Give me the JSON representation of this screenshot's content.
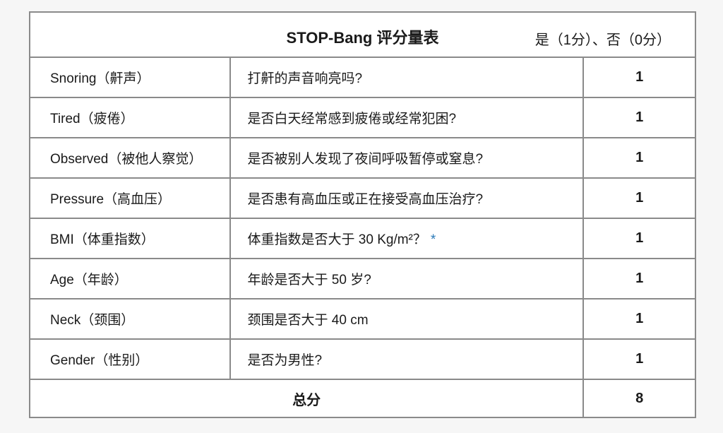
{
  "table": {
    "title": "STOP-Bang 评分量表",
    "scoring_legend": "是（1分）、否（0分）",
    "rows": [
      {
        "item": "Snoring（鼾声）",
        "question": "打鼾的声音响亮吗?",
        "score": "1"
      },
      {
        "item": "Tired（疲倦）",
        "question": "是否白天经常感到疲倦或经常犯困?",
        "score": "1"
      },
      {
        "item": "Observed（被他人察觉）",
        "question": "是否被别人发现了夜间呼吸暂停或窒息?",
        "score": "1"
      },
      {
        "item": "Pressure（高血压）",
        "question": "是否患有高血压或正在接受高血压治疗?",
        "score": "1"
      },
      {
        "item": "BMI（体重指数）",
        "question": "体重指数是否大于 30 Kg/m²？",
        "note_mark": "*",
        "score": "1"
      },
      {
        "item": "Age（年龄）",
        "question": "年龄是否大于 50 岁?",
        "score": "1"
      },
      {
        "item": "Neck（颈围）",
        "question": "颈围是否大于 40 cm",
        "score": "1"
      },
      {
        "item": "Gender（性别）",
        "question": "是否为男性?",
        "score": "1"
      }
    ],
    "total_label": "总分",
    "total_score": "8"
  },
  "colors": {
    "border": "#8a8a8a",
    "note_mark": "#2a7ab8"
  }
}
